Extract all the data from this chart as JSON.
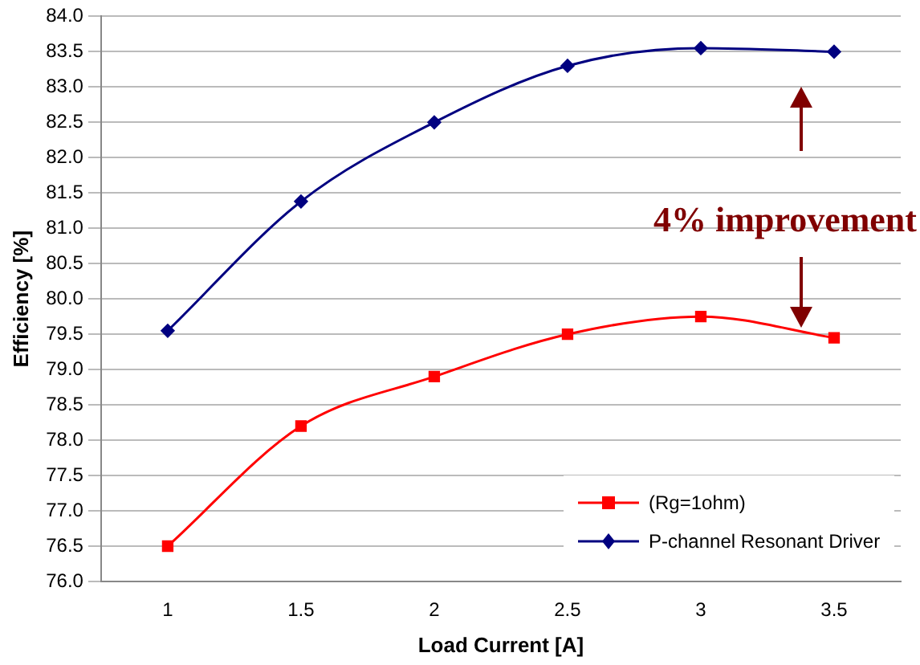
{
  "chart_data": {
    "type": "line",
    "xlabel": "Load Current [A]",
    "ylabel": "Efficiency [%]",
    "categories": [
      "1",
      "1.5",
      "2",
      "2.5",
      "3",
      "3.5"
    ],
    "series": [
      {
        "name": "(Rg=1ohm)",
        "color": "#ff0000",
        "marker": "square",
        "values": [
          76.5,
          78.2,
          78.9,
          79.5,
          79.75,
          79.45
        ]
      },
      {
        "name": "P-channel Resonant Driver",
        "color": "#000080",
        "marker": "diamond",
        "values": [
          79.55,
          81.38,
          82.5,
          83.3,
          83.55,
          83.5
        ]
      }
    ],
    "ylim": [
      76,
      84
    ],
    "yticks": [
      {
        "value": 76,
        "label": "76.0"
      },
      {
        "value": 76.5,
        "label": "76.5"
      },
      {
        "value": 77,
        "label": "77.0"
      },
      {
        "value": 77.5,
        "label": "77.5"
      },
      {
        "value": 78,
        "label": "78.0"
      },
      {
        "value": 78.5,
        "label": "78.5"
      },
      {
        "value": 79,
        "label": "79.0"
      },
      {
        "value": 79.5,
        "label": "79.5"
      },
      {
        "value": 80,
        "label": "80.0"
      },
      {
        "value": 80.5,
        "label": "80.5"
      },
      {
        "value": 81,
        "label": "81.0"
      },
      {
        "value": 81.5,
        "label": "81.5"
      },
      {
        "value": 82,
        "label": "82.0"
      },
      {
        "value": 82.5,
        "label": "82.5"
      },
      {
        "value": 83,
        "label": "83.0"
      },
      {
        "value": 83.5,
        "label": "83.5"
      },
      {
        "value": 84,
        "label": "84.0"
      }
    ],
    "grid": "y",
    "legend": "bottom right",
    "annotations": [
      "4% improvement"
    ]
  }
}
